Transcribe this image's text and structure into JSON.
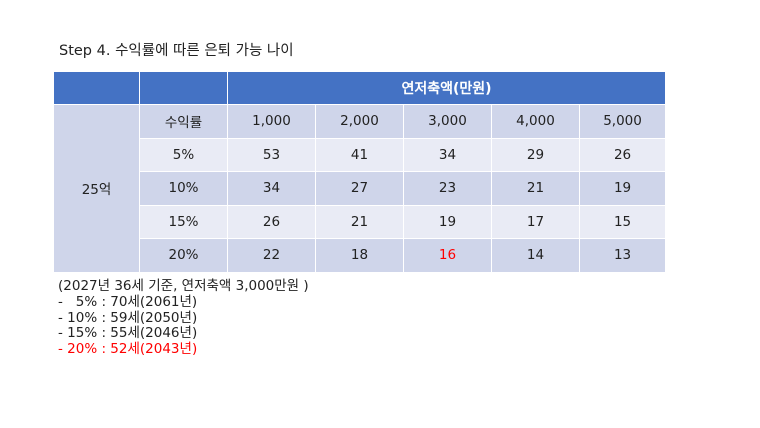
{
  "title": "Step 4. 수익률에 따른 은퇴 가능 나이",
  "table": {
    "header_group": "연저축액(만원)",
    "row_group": "25억",
    "column_header_label": "수익률",
    "columns": [
      "1,000",
      "2,000",
      "3,000",
      "4,000",
      "5,000"
    ],
    "rows": [
      {
        "rate": "5%",
        "values": [
          "53",
          "41",
          "34",
          "29",
          "26"
        ]
      },
      {
        "rate": "10%",
        "values": [
          "34",
          "27",
          "23",
          "21",
          "19"
        ]
      },
      {
        "rate": "15%",
        "values": [
          "26",
          "21",
          "19",
          "17",
          "15"
        ]
      },
      {
        "rate": "20%",
        "values": [
          "22",
          "18",
          "16",
          "14",
          "13"
        ]
      }
    ],
    "highlight_color": "#ff0000",
    "header_color": "#4472c4",
    "dark_row_color": "#cfd5ea",
    "light_row_color": "#e9ebf5"
  },
  "notes": [
    "(2027년 36세 기준, 연저축액 3,000만원 )",
    "-   5% : 70세(2061년)",
    "- 10% : 59세(2050년)",
    "- 15% : 55세(2046년)",
    "- 20% : 52세(2043년)"
  ]
}
